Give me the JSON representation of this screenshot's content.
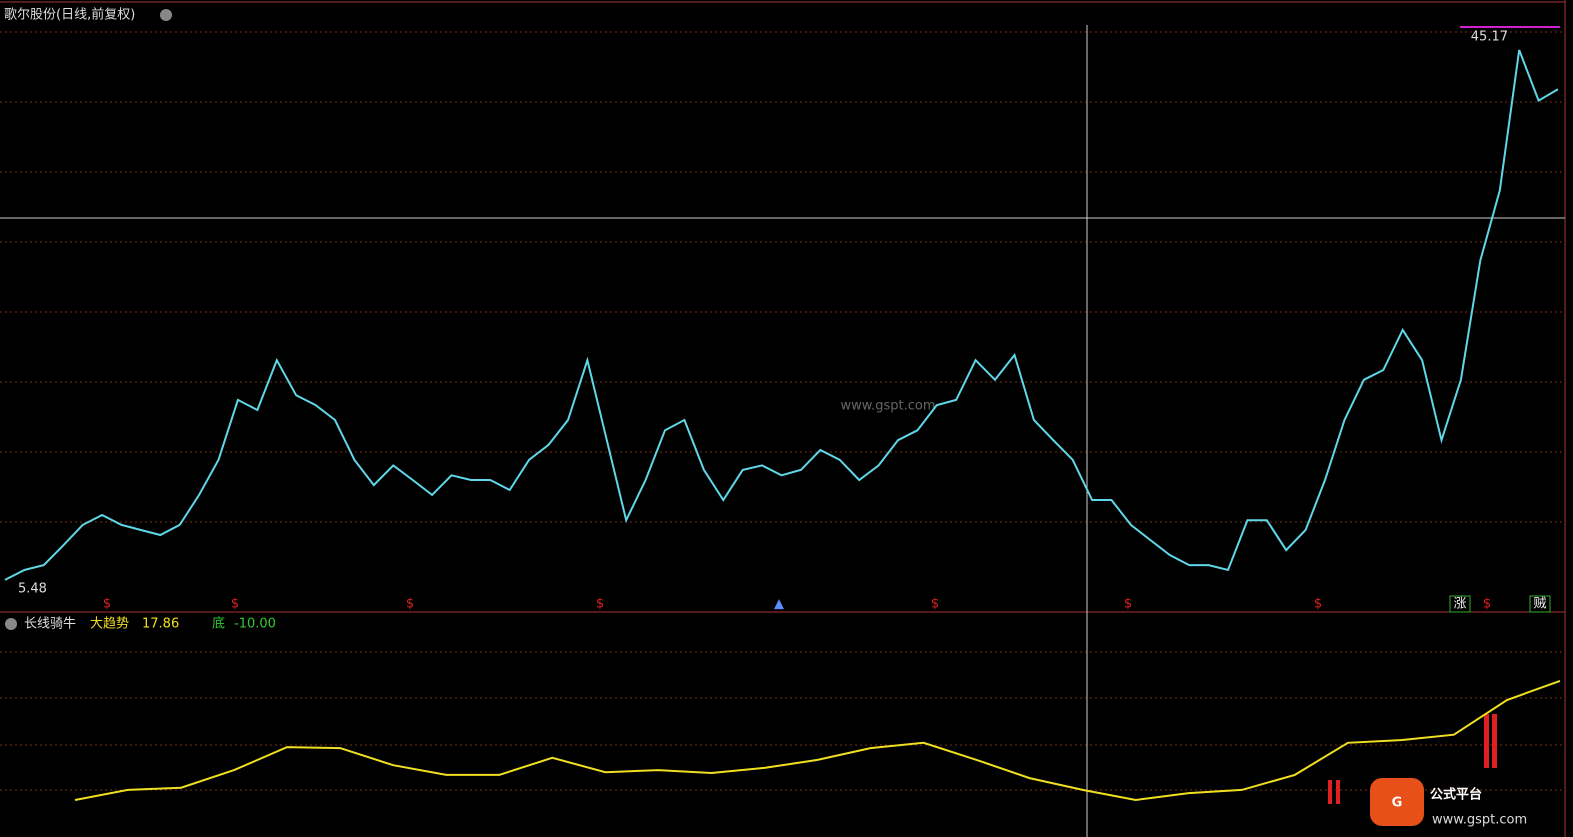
{
  "chart_data": [
    {
      "type": "line",
      "title": "歌尔股份(日线,前复权)",
      "high_label": 45.17,
      "low_label": 5.48,
      "color": "#5fd7e8",
      "values": [
        5.84,
        6.55,
        6.9,
        8.3,
        9.76,
        10.47,
        9.76,
        9.4,
        9.04,
        9.76,
        11.9,
        14.4,
        18.67,
        17.95,
        21.5,
        19.0,
        18.3,
        17.24,
        14.4,
        12.6,
        14.0,
        12.96,
        11.9,
        13.3,
        12.96,
        12.96,
        12.25,
        14.4,
        15.46,
        17.24,
        21.5,
        15.8,
        10.1,
        12.96,
        16.5,
        17.24,
        13.68,
        11.54,
        13.68,
        14.0,
        13.3,
        13.68,
        15.1,
        14.4,
        12.96,
        14.0,
        15.8,
        16.5,
        18.3,
        18.67,
        21.5,
        20.1,
        21.87,
        17.24,
        15.8,
        14.4,
        11.54,
        11.54,
        9.76,
        8.69,
        7.62,
        6.9,
        6.9,
        6.55,
        10.1,
        10.1,
        7.97,
        9.4,
        12.96,
        17.24,
        20.1,
        20.8,
        23.66,
        21.5,
        15.8,
        20.1,
        28.6,
        33.6,
        43.6,
        40.0,
        40.8
      ],
      "signals": [
        "$",
        "$",
        "$",
        "$",
        "$",
        "$",
        "$",
        "$",
        "涨",
        "贼"
      ],
      "watermark": "www.gspt.com"
    },
    {
      "type": "line",
      "title": "长线骑牛",
      "series_label": "大趋势",
      "current_value": 17.86,
      "bottom_label": "底",
      "bottom_value": -10.0,
      "bottom_value_label": "-10.00",
      "color": "#f0e020",
      "ylim": [
        -10,
        27
      ],
      "values": [
        -4.4,
        -2.5,
        -2.1,
        1.2,
        5.5,
        5.3,
        2.1,
        0.3,
        0.3,
        3.5,
        0.8,
        1.2,
        0.65,
        1.6,
        3.1,
        5.3,
        6.3,
        3.1,
        -0.3,
        -2.5,
        -4.4,
        -3.1,
        -2.5,
        0.3,
        6.3,
        6.8,
        7.8,
        14.3,
        17.86
      ]
    }
  ],
  "logo": {
    "name": "公式平台",
    "url": "www.gspt.com"
  }
}
